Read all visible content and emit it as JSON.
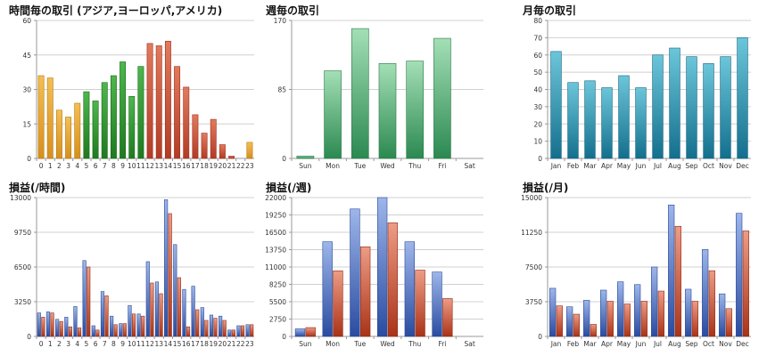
{
  "chart_data": [
    {
      "type": "bar",
      "title": "時間毎の取引 (アジア,ヨーロッパ,アメリカ)",
      "categories": [
        "0",
        "1",
        "2",
        "3",
        "4",
        "5",
        "6",
        "7",
        "8",
        "9",
        "10",
        "11",
        "12",
        "13",
        "14",
        "15",
        "16",
        "17",
        "18",
        "19",
        "20",
        "21",
        "22",
        "23"
      ],
      "values": [
        36,
        35,
        21,
        18,
        24,
        29,
        25,
        33,
        36,
        42,
        27,
        40,
        50,
        49,
        51,
        40,
        31,
        19,
        11,
        17,
        6,
        1,
        0,
        7
      ],
      "colors": [
        "#e8a030",
        "#e8a030",
        "#e8a030",
        "#e8a030",
        "#e8a030",
        "#2f9a2f",
        "#2f9a2f",
        "#2f9a2f",
        "#2f9a2f",
        "#2f9a2f",
        "#2f9a2f",
        "#2f9a2f",
        "#c9553c",
        "#c9553c",
        "#c9553c",
        "#c9553c",
        "#c9553c",
        "#c9553c",
        "#c9553c",
        "#c9553c",
        "#c9553c",
        "#c9553c",
        "#e8a030",
        "#e8a030"
      ],
      "yticks": [
        "0",
        "15",
        "30",
        "45",
        "60"
      ],
      "ylim": [
        0,
        60
      ],
      "grid": true
    },
    {
      "type": "bar",
      "title": "週毎の取引",
      "categories": [
        "Sun",
        "Mon",
        "Tue",
        "Wed",
        "Thu",
        "Fri",
        "Sat"
      ],
      "values": [
        3,
        108,
        160,
        117,
        120,
        148,
        0
      ],
      "colors": [
        "#3f9a60"
      ],
      "yticks": [
        "0",
        "85",
        "170"
      ],
      "ylim": [
        0,
        170
      ],
      "grid": true
    },
    {
      "type": "bar",
      "title": "月毎の取引",
      "categories": [
        "Jan",
        "Feb",
        "Mar",
        "Apr",
        "May",
        "Jun",
        "Jul",
        "Aug",
        "Sep",
        "Oct",
        "Nov",
        "Dec"
      ],
      "values": [
        62,
        44,
        45,
        41,
        48,
        41,
        60,
        64,
        59,
        55,
        59,
        70
      ],
      "colors": [
        "#2a8fa8"
      ],
      "yticks": [
        "0",
        "10",
        "20",
        "30",
        "40",
        "50",
        "60",
        "70",
        "80"
      ],
      "ylim": [
        0,
        80
      ],
      "grid": true
    },
    {
      "type": "bar",
      "title": "損益(/時間)",
      "categories": [
        "0",
        "1",
        "2",
        "3",
        "4",
        "5",
        "6",
        "7",
        "8",
        "9",
        "10",
        "11",
        "12",
        "13",
        "14",
        "15",
        "16",
        "17",
        "18",
        "19",
        "20",
        "21",
        "22",
        "23"
      ],
      "series": [
        {
          "values": [
            2200,
            2300,
            1600,
            1800,
            2800,
            7100,
            1000,
            4200,
            1900,
            1200,
            2900,
            2100,
            7000,
            5100,
            12800,
            8600,
            4400,
            4700,
            2700,
            2000,
            1900,
            600,
            1000,
            1100
          ]
        },
        {
          "values": [
            1800,
            2200,
            1400,
            900,
            800,
            6500,
            600,
            3800,
            1100,
            1200,
            2100,
            1900,
            5000,
            4000,
            11500,
            5500,
            900,
            2500,
            1500,
            1700,
            1500,
            600,
            1000,
            1100
          ]
        }
      ],
      "colors": [
        "#4a6ec0",
        "#c9553c"
      ],
      "yticks": [
        "0",
        "3250",
        "6500",
        "9750",
        "13000"
      ],
      "ylim": [
        0,
        13000
      ],
      "grid": true
    },
    {
      "type": "bar",
      "title": "損益(/週)",
      "categories": [
        "Sun",
        "Mon",
        "Tue",
        "Wed",
        "Thu",
        "Fri",
        "Sat"
      ],
      "series": [
        {
          "values": [
            1200,
            15000,
            20200,
            22000,
            15000,
            10200,
            0
          ]
        },
        {
          "values": [
            1400,
            10400,
            14200,
            18000,
            10500,
            6000,
            0
          ]
        }
      ],
      "colors": [
        "#4a6ec0",
        "#c9553c"
      ],
      "yticks": [
        "0",
        "2750",
        "5500",
        "8250",
        "11000",
        "13750",
        "16500",
        "19250",
        "22000"
      ],
      "ylim": [
        0,
        22000
      ],
      "grid": true
    },
    {
      "type": "bar",
      "title": "損益(/月)",
      "categories": [
        "Jan",
        "Feb",
        "Mar",
        "Apr",
        "May",
        "Jun",
        "Jul",
        "Aug",
        "Sep",
        "Oct",
        "Nov",
        "Dec"
      ],
      "series": [
        {
          "values": [
            5200,
            3200,
            3900,
            5000,
            5900,
            5600,
            7500,
            14200,
            5100,
            9400,
            4600,
            13300
          ]
        },
        {
          "values": [
            3300,
            2400,
            1300,
            3800,
            3500,
            3800,
            4900,
            11900,
            3800,
            7100,
            3000,
            11400
          ]
        }
      ],
      "colors": [
        "#4a6ec0",
        "#c9553c"
      ],
      "yticks": [
        "0",
        "3750",
        "7500",
        "11250",
        "15000"
      ],
      "ylim": [
        0,
        15000
      ],
      "grid": true
    }
  ]
}
